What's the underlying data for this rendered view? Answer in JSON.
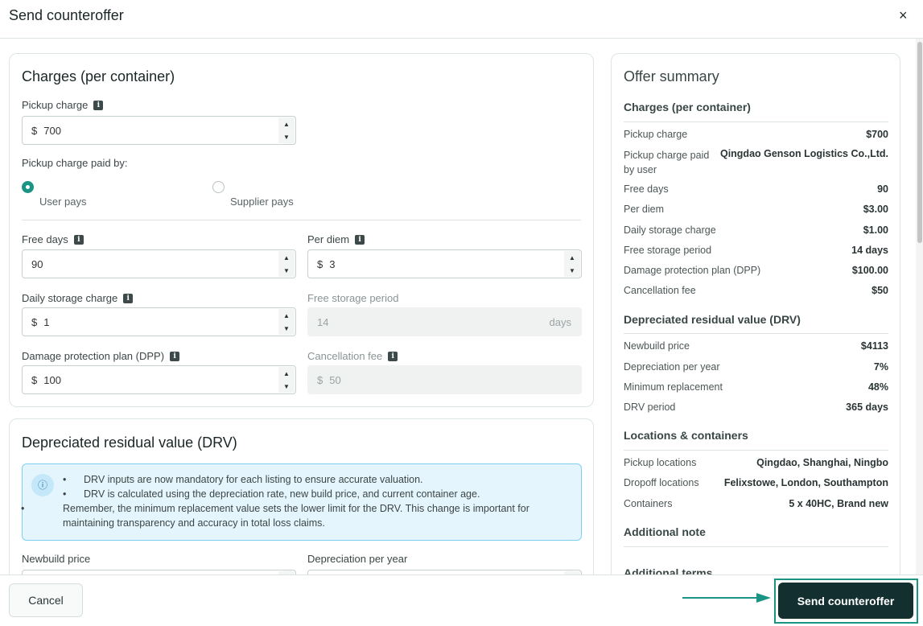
{
  "dialog": {
    "title": "Send counteroffer",
    "close_label": "×"
  },
  "charges": {
    "title": "Charges (per container)",
    "pickup_charge": {
      "label": "Pickup charge",
      "currency": "$",
      "value": "700"
    },
    "paid_by": {
      "label": "Pickup charge paid by:",
      "options": [
        {
          "label": "User pays",
          "selected": true
        },
        {
          "label": "Supplier pays",
          "selected": false
        }
      ]
    },
    "free_days": {
      "label": "Free days",
      "value": "90"
    },
    "per_diem": {
      "label": "Per diem",
      "currency": "$",
      "value": "3"
    },
    "daily_storage": {
      "label": "Daily storage charge",
      "currency": "$",
      "value": "1"
    },
    "free_storage": {
      "label": "Free storage period",
      "value": "14",
      "unit": "days"
    },
    "dpp": {
      "label": "Damage protection plan (DPP)",
      "currency": "$",
      "value": "100"
    },
    "cancellation": {
      "label": "Cancellation fee",
      "currency": "$",
      "value": "50"
    }
  },
  "drv": {
    "title": "Depreciated residual value (DRV)",
    "notes": [
      "DRV inputs are now mandatory for each listing to ensure accurate valuation.",
      "DRV is calculated using the depreciation rate, new build price, and current container age.",
      "Remember, the minimum replacement value sets the lower limit for the DRV. This change is important for maintaining transparency and accuracy in total loss claims."
    ],
    "newbuild_label": "Newbuild price",
    "depreciation_label": "Depreciation per year"
  },
  "summary": {
    "title": "Offer summary",
    "charges_heading": "Charges (per container)",
    "charges": [
      {
        "k": "Pickup charge",
        "v": "$700"
      },
      {
        "k": "Pickup charge paid by user",
        "v": "Qingdao Genson Logistics Co.,Ltd."
      },
      {
        "k": "Free days",
        "v": "90"
      },
      {
        "k": "Per diem",
        "v": "$3.00"
      },
      {
        "k": "Daily storage charge",
        "v": "$1.00"
      },
      {
        "k": "Free storage period",
        "v": "14 days"
      },
      {
        "k": "Damage protection plan (DPP)",
        "v": "$100.00"
      },
      {
        "k": "Cancellation fee",
        "v": "$50"
      }
    ],
    "drv_heading": "Depreciated residual value (DRV)",
    "drv": [
      {
        "k": "Newbuild price",
        "v": "$4113"
      },
      {
        "k": "Depreciation per year",
        "v": "7%"
      },
      {
        "k": "Minimum replacement",
        "v": "48%"
      },
      {
        "k": "DRV period",
        "v": "365 days"
      }
    ],
    "loc_heading": "Locations & containers",
    "loc": [
      {
        "k": "Pickup locations",
        "v": "Qingdao, Shanghai, Ningbo"
      },
      {
        "k": "Dropoff locations",
        "v": "Felixstowe, London, Southampton"
      },
      {
        "k": "Containers",
        "v": "5 x 40HC, Brand new"
      }
    ],
    "note_heading": "Additional note",
    "terms_heading": "Additional terms"
  },
  "footer": {
    "cancel": "Cancel",
    "send": "Send counteroffer"
  },
  "colors": {
    "accent": "#1a9484",
    "primary_button": "#132f2f"
  }
}
